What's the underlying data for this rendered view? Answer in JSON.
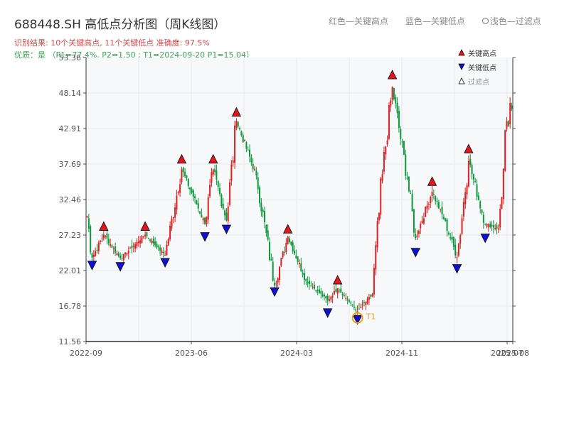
{
  "header": {
    "title": "688448.SH 高低点分析图（周K线图）",
    "result_line": "识别结果: 10个关键高点, 11个关键低点  准确度: 97.5%",
    "quality_line": "优质：是 （P1=77.4%, P2=1.50 ; T1=2024-09-20 P1=15.04）"
  },
  "top_legend": {
    "red": "红色—关键高点",
    "blue": "蓝色—关键低点",
    "hollow": "浅色—过滤点"
  },
  "legend": {
    "high": "关键高点",
    "low": "关键低点",
    "filtered": "过滤点"
  },
  "colors": {
    "up": "#e02020",
    "down": "#0a9a3a",
    "high_marker": "#e8141c",
    "low_marker": "#1010d8",
    "t1_marker": "#f0a020",
    "grid": "#e6e9ee",
    "plot_bg": "#f7f8fa"
  },
  "chart_data": {
    "type": "candlestick",
    "xlim": [
      "2022-09",
      "2025-08"
    ],
    "x_ticks": [
      "2022-09",
      "2023-06",
      "2024-03",
      "2024-11",
      "2025-07",
      "2025-08"
    ],
    "ylim": [
      11.56,
      53.36
    ],
    "y_ticks": [
      "11.56",
      "16.78",
      "22.01",
      "27.23",
      "32.46",
      "37.69",
      "42.91",
      "48.14",
      "53.36"
    ],
    "t1_label": "T1",
    "waypoints": [
      {
        "i": 0,
        "p": 30.0
      },
      {
        "i": 3,
        "p": 23.9
      },
      {
        "i": 10,
        "p": 27.3
      },
      {
        "i": 20,
        "p": 23.8
      },
      {
        "i": 35,
        "p": 27.3
      },
      {
        "i": 47,
        "p": 24.3
      },
      {
        "i": 57,
        "p": 36.9
      },
      {
        "i": 71,
        "p": 28.9
      },
      {
        "i": 76,
        "p": 36.9
      },
      {
        "i": 84,
        "p": 29.4
      },
      {
        "i": 90,
        "p": 44.0
      },
      {
        "i": 102,
        "p": 36.0
      },
      {
        "i": 113,
        "p": 19.8
      },
      {
        "i": 121,
        "p": 27.0
      },
      {
        "i": 132,
        "p": 20.5
      },
      {
        "i": 145,
        "p": 17.6
      },
      {
        "i": 151,
        "p": 19.4
      },
      {
        "i": 163,
        "p": 16.0
      },
      {
        "i": 172,
        "p": 18.5
      },
      {
        "i": 178,
        "p": 36.2
      },
      {
        "i": 184,
        "p": 49.0
      },
      {
        "i": 193,
        "p": 35.5
      },
      {
        "i": 198,
        "p": 26.8
      },
      {
        "i": 208,
        "p": 33.6
      },
      {
        "i": 215,
        "p": 29.6
      },
      {
        "i": 223,
        "p": 24.0
      },
      {
        "i": 230,
        "p": 38.1
      },
      {
        "i": 240,
        "p": 28.8
      },
      {
        "i": 248,
        "p": 28.2
      },
      {
        "i": 251,
        "p": 37.0
      },
      {
        "i": 253,
        "p": 44.0
      }
    ],
    "key_highs": [
      {
        "i": 10,
        "price": 27.6
      },
      {
        "i": 35,
        "price": 27.6
      },
      {
        "i": 57,
        "price": 37.5
      },
      {
        "i": 76,
        "price": 37.5
      },
      {
        "i": 90,
        "price": 44.4
      },
      {
        "i": 121,
        "price": 27.2
      },
      {
        "i": 151,
        "price": 19.7
      },
      {
        "i": 184,
        "price": 49.9
      },
      {
        "i": 208,
        "price": 34.2
      },
      {
        "i": 230,
        "price": 39.0
      }
    ],
    "key_lows": [
      {
        "i": 3,
        "price": 23.7
      },
      {
        "i": 20,
        "price": 23.5
      },
      {
        "i": 47,
        "price": 24.1
      },
      {
        "i": 71,
        "price": 27.9
      },
      {
        "i": 84,
        "price": 29.0
      },
      {
        "i": 113,
        "price": 19.8
      },
      {
        "i": 145,
        "price": 16.7
      },
      {
        "i": 163,
        "price": 15.7
      },
      {
        "i": 198,
        "price": 25.6
      },
      {
        "i": 223,
        "price": 23.2
      },
      {
        "i": 240,
        "price": 27.7
      }
    ],
    "t1": {
      "i": 163,
      "price": 15.04,
      "date": "2024-09-20"
    }
  }
}
